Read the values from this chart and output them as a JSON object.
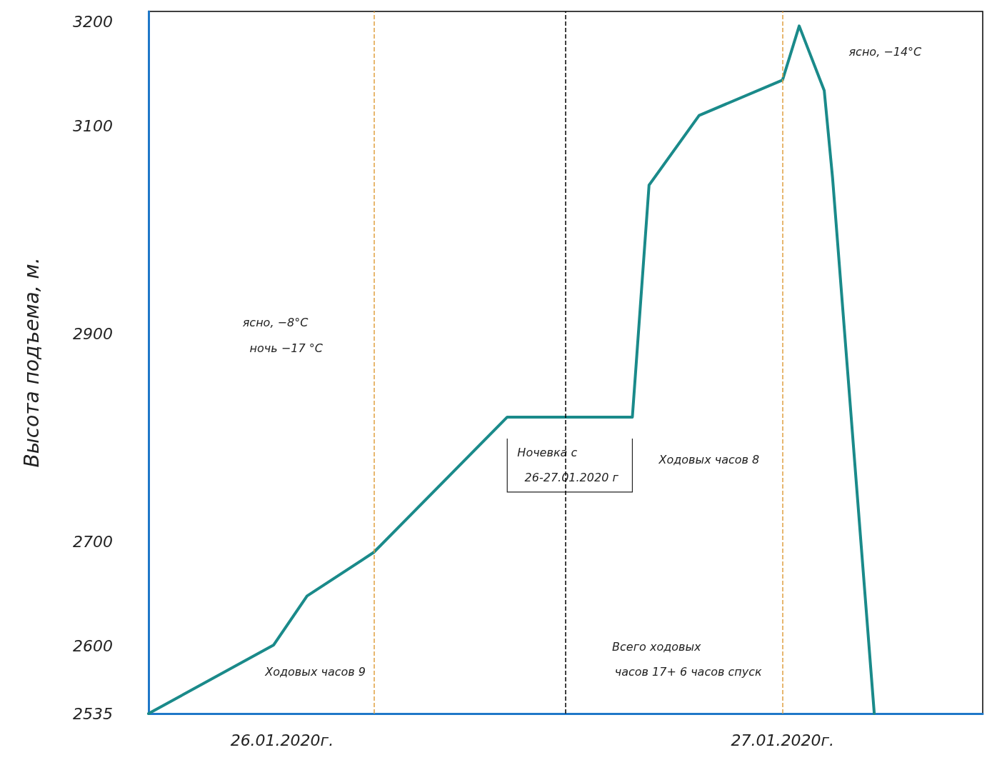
{
  "chart_data": {
    "type": "line",
    "ylabel": "Высота подъема, м.",
    "categories": [
      null,
      null,
      null,
      null,
      null,
      null,
      null,
      null,
      null,
      null,
      null,
      null,
      null,
      null,
      null,
      null,
      "26.01.2020г.",
      null,
      null,
      null,
      null,
      null,
      null,
      null,
      null,
      null,
      null,
      null,
      null,
      null,
      null,
      null,
      null,
      null,
      null,
      null,
      null,
      null,
      null,
      null,
      null,
      null,
      null,
      null,
      null,
      null,
      null,
      null,
      null,
      null,
      null,
      null,
      null,
      null,
      null,
      null,
      null,
      null,
      null,
      null,
      null,
      null,
      null,
      null,
      null,
      null,
      null,
      null,
      null,
      null,
      null,
      null,
      null,
      null,
      null,
      null,
      "27.01.2020г.",
      null,
      null,
      null,
      null,
      null,
      null,
      null,
      null,
      null,
      null,
      null,
      null,
      null,
      null,
      null,
      null,
      null,
      null,
      null,
      null,
      null,
      null,
      null,
      null
    ],
    "series": [
      {
        "color": "#1a8a8a",
        "values": [
          2535,
          null,
          null,
          null,
          null,
          null,
          null,
          null,
          null,
          null,
          null,
          null,
          null,
          null,
          null,
          2601,
          null,
          null,
          null,
          2648,
          null,
          null,
          null,
          null,
          null,
          null,
          null,
          2690,
          null,
          null,
          null,
          null,
          null,
          null,
          null,
          null,
          null,
          null,
          null,
          null,
          null,
          null,
          null,
          2820,
          null,
          null,
          null,
          null,
          null,
          null,
          null,
          null,
          null,
          null,
          null,
          null,
          null,
          null,
          2820,
          null,
          3043,
          null,
          null,
          null,
          null,
          null,
          3110,
          null,
          null,
          null,
          null,
          null,
          null,
          null,
          null,
          null,
          3144,
          null,
          3196,
          null,
          null,
          3134,
          3050,
          null,
          null,
          null,
          null,
          2535,
          null,
          null,
          null,
          null,
          null,
          null,
          null,
          null,
          null,
          null,
          null,
          null,
          null
        ]
      }
    ],
    "ylim": [
      2535,
      3210
    ],
    "yticks": [
      2535,
      2600,
      2700,
      2900,
      3100,
      3200
    ],
    "grid": false,
    "marker": "none",
    "line_style": "solid",
    "annotations": [
      "ясно, −8°C",
      "ночь −17 °C",
      "Ночевка с",
      "26-27.01.2020 г",
      "Ходовых часов 8",
      "Ходовых часов 9",
      "Всего ходовых",
      "часов 17+ 6 часов спуск",
      "ясно, −14°C"
    ]
  }
}
